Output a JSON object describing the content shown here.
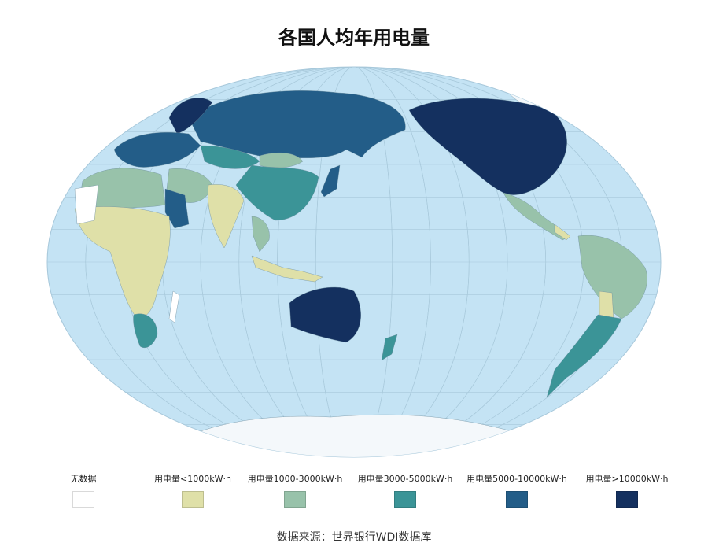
{
  "title": "各国人均年用电量",
  "source": "数据来源：世界银行WDI数据库",
  "colors": {
    "ocean": "#c4e3f4",
    "ice": "#f4f8fb",
    "no_data": "#ffffff",
    "lt1000": "#dfe0a8",
    "1000_3000": "#98c2aa",
    "3000_5000": "#3b9497",
    "5000_10000": "#235d88",
    "gt10000": "#14305f"
  },
  "legend": [
    {
      "label": "无数据",
      "color": "#ffffff"
    },
    {
      "label": "用电量<1000kW·h",
      "color": "#dfe0a8"
    },
    {
      "label": "用电量1000-3000kW·h",
      "color": "#98c2aa"
    },
    {
      "label": "用电量3000-5000kW·h",
      "color": "#3b9497"
    },
    {
      "label": "用电量5000-10000kW·h",
      "color": "#235d88"
    },
    {
      "label": "用电量>10000kW·h",
      "color": "#14305f"
    }
  ]
}
